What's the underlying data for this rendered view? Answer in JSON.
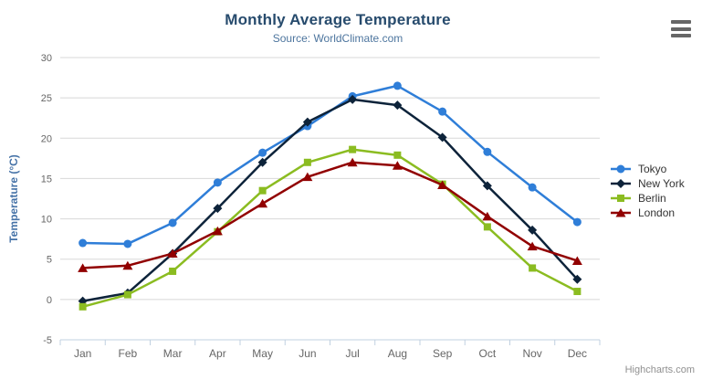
{
  "chart_data": {
    "type": "line",
    "title": "Monthly Average Temperature",
    "subtitle": "Source: WorldClimate.com",
    "xlabel": "",
    "ylabel": "Temperature (°C)",
    "categories": [
      "Jan",
      "Feb",
      "Mar",
      "Apr",
      "May",
      "Jun",
      "Jul",
      "Aug",
      "Sep",
      "Oct",
      "Nov",
      "Dec"
    ],
    "ylim": [
      -5,
      30
    ],
    "ytick_interval": 5,
    "ytick_labels": [
      "-5",
      "0",
      "5",
      "10",
      "15",
      "20",
      "25",
      "30"
    ],
    "grid": true,
    "legend_position": "right",
    "series": [
      {
        "name": "Tokyo",
        "color": "#2f7ed8",
        "marker": "circle",
        "values": [
          7.0,
          6.9,
          9.5,
          14.5,
          18.2,
          21.5,
          25.2,
          26.5,
          23.3,
          18.3,
          13.9,
          9.6
        ]
      },
      {
        "name": "New York",
        "color": "#0d233a",
        "marker": "diamond",
        "values": [
          -0.2,
          0.8,
          5.7,
          11.3,
          17.0,
          22.0,
          24.8,
          24.1,
          20.1,
          14.1,
          8.6,
          2.5
        ]
      },
      {
        "name": "Berlin",
        "color": "#8bbc21",
        "marker": "square",
        "values": [
          -0.9,
          0.6,
          3.5,
          8.4,
          13.5,
          17.0,
          18.6,
          17.9,
          14.3,
          9.0,
          3.9,
          1.0
        ]
      },
      {
        "name": "London",
        "color": "#910000",
        "marker": "triangle",
        "values": [
          3.9,
          4.2,
          5.7,
          8.5,
          11.9,
          15.2,
          17.0,
          16.6,
          14.2,
          10.3,
          6.6,
          4.8
        ]
      }
    ]
  },
  "theme": {
    "title_color": "#274b6d",
    "subtitle_color": "#4d759e",
    "axis_title_color": "#4572a7",
    "axis_label_color": "#666666",
    "grid_color": "#d8d8d8",
    "axis_line_color": "#c0d0e0",
    "legend_text_color": "#333333",
    "burger_color": "#666666",
    "credits_color": "#909090"
  },
  "credits": {
    "text": "Highcharts.com"
  }
}
